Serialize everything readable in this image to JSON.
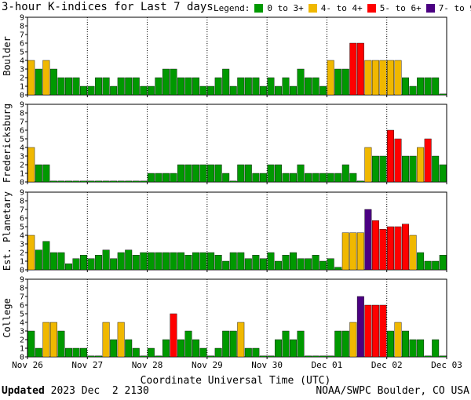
{
  "title": "3-hour K-indices for Last 7 days",
  "legend": {
    "label": "Legend:",
    "items": [
      {
        "label": "0 to 3+",
        "color": "#009900"
      },
      {
        "label": "4- to 4+",
        "color": "#f0b800"
      },
      {
        "label": "5- to 6+",
        "color": "#ff0000"
      },
      {
        "label": "7- to 9",
        "color": "#4b0082"
      }
    ]
  },
  "footer": {
    "updated_label": "Updated",
    "updated_value": "2023 Dec  2 2130",
    "credit": "NOAA/SWPC Boulder, CO USA"
  },
  "chart_data": [
    {
      "type": "bar",
      "ylabel": "Boulder",
      "ylim": [
        0,
        9
      ],
      "yticks": [
        0,
        1,
        2,
        3,
        4,
        5,
        6,
        7,
        8,
        9
      ],
      "xlabel": "Coordinate Universal Time (UTC)",
      "xticks": [
        "Nov 26",
        "Nov 27",
        "Nov 28",
        "Nov 29",
        "Nov 30",
        "Dec 01",
        "Dec 02",
        "Dec 03"
      ],
      "values": [
        4,
        3,
        4,
        3,
        2,
        2,
        2,
        1,
        1,
        2,
        2,
        1,
        2,
        2,
        2,
        1,
        1,
        2,
        3,
        3,
        2,
        2,
        2,
        1,
        1,
        2,
        3,
        1,
        2,
        2,
        2,
        1,
        2,
        1,
        2,
        1,
        3,
        2,
        2,
        1,
        4,
        3,
        3,
        6,
        6,
        4,
        4,
        4,
        4,
        4,
        2,
        1,
        2,
        2,
        2,
        0
      ]
    },
    {
      "type": "bar",
      "ylabel": "Fredericksburg",
      "ylim": [
        0,
        9
      ],
      "yticks": [
        0,
        1,
        2,
        3,
        4,
        5,
        6,
        7,
        8,
        9
      ],
      "xticks": [
        "Nov 26",
        "Nov 27",
        "Nov 28",
        "Nov 29",
        "Nov 30",
        "Dec 01",
        "Dec 02",
        "Dec 03"
      ],
      "values": [
        4,
        2,
        2,
        0,
        0,
        0,
        0,
        0,
        0,
        0,
        0,
        0,
        0,
        0,
        0,
        0,
        1,
        1,
        1,
        1,
        2,
        2,
        2,
        2,
        2,
        2,
        1,
        0,
        2,
        2,
        1,
        1,
        2,
        2,
        1,
        1,
        2,
        1,
        1,
        1,
        1,
        1,
        2,
        1,
        0,
        4,
        3,
        3,
        6,
        5,
        3,
        3,
        4,
        5,
        3,
        2,
        1,
        1,
        2,
        1,
        0
      ]
    },
    {
      "type": "bar",
      "ylabel": "Est. Planetary",
      "ylim": [
        0,
        9
      ],
      "yticks": [
        0,
        1,
        2,
        3,
        4,
        5,
        6,
        7,
        8,
        9
      ],
      "xticks": [
        "Nov 26",
        "Nov 27",
        "Nov 28",
        "Nov 29",
        "Nov 30",
        "Dec 01",
        "Dec 02",
        "Dec 03"
      ],
      "values": [
        4,
        2.3,
        3.3,
        2,
        2,
        0.7,
        1.3,
        1.7,
        1.3,
        1.7,
        2.3,
        1.3,
        2,
        2.3,
        1.7,
        2,
        2,
        2,
        2,
        2,
        2,
        1.7,
        2,
        2,
        2,
        1.7,
        1,
        2,
        2,
        1.3,
        1.7,
        1.3,
        2,
        1,
        1.7,
        2,
        1.3,
        1.3,
        1.7,
        1,
        1.3,
        0.3,
        4.3,
        4.3,
        4.3,
        7,
        5.7,
        4.7,
        5,
        5,
        5.3,
        4,
        2,
        1,
        1,
        1.7,
        1.3
      ]
    },
    {
      "type": "bar",
      "ylabel": "College",
      "ylim": [
        0,
        9
      ],
      "yticks": [
        0,
        1,
        2,
        3,
        4,
        5,
        6,
        7,
        8,
        9
      ],
      "xticks": [
        "Nov 26",
        "Nov 27",
        "Nov 28",
        "Nov 29",
        "Nov 30",
        "Dec 01",
        "Dec 02",
        "Dec 03"
      ],
      "values": [
        3,
        1,
        4,
        4,
        3,
        1,
        1,
        1,
        0,
        0,
        4,
        2,
        4,
        2,
        1,
        0,
        1,
        0,
        2,
        5,
        2,
        3,
        2,
        1,
        0,
        1,
        3,
        3,
        4,
        1,
        1,
        0,
        0,
        2,
        3,
        2,
        3,
        0,
        0,
        0,
        0,
        3,
        3,
        4,
        7,
        6,
        6,
        6,
        3,
        4,
        3,
        2,
        2,
        0,
        2,
        0,
        0
      ]
    }
  ]
}
